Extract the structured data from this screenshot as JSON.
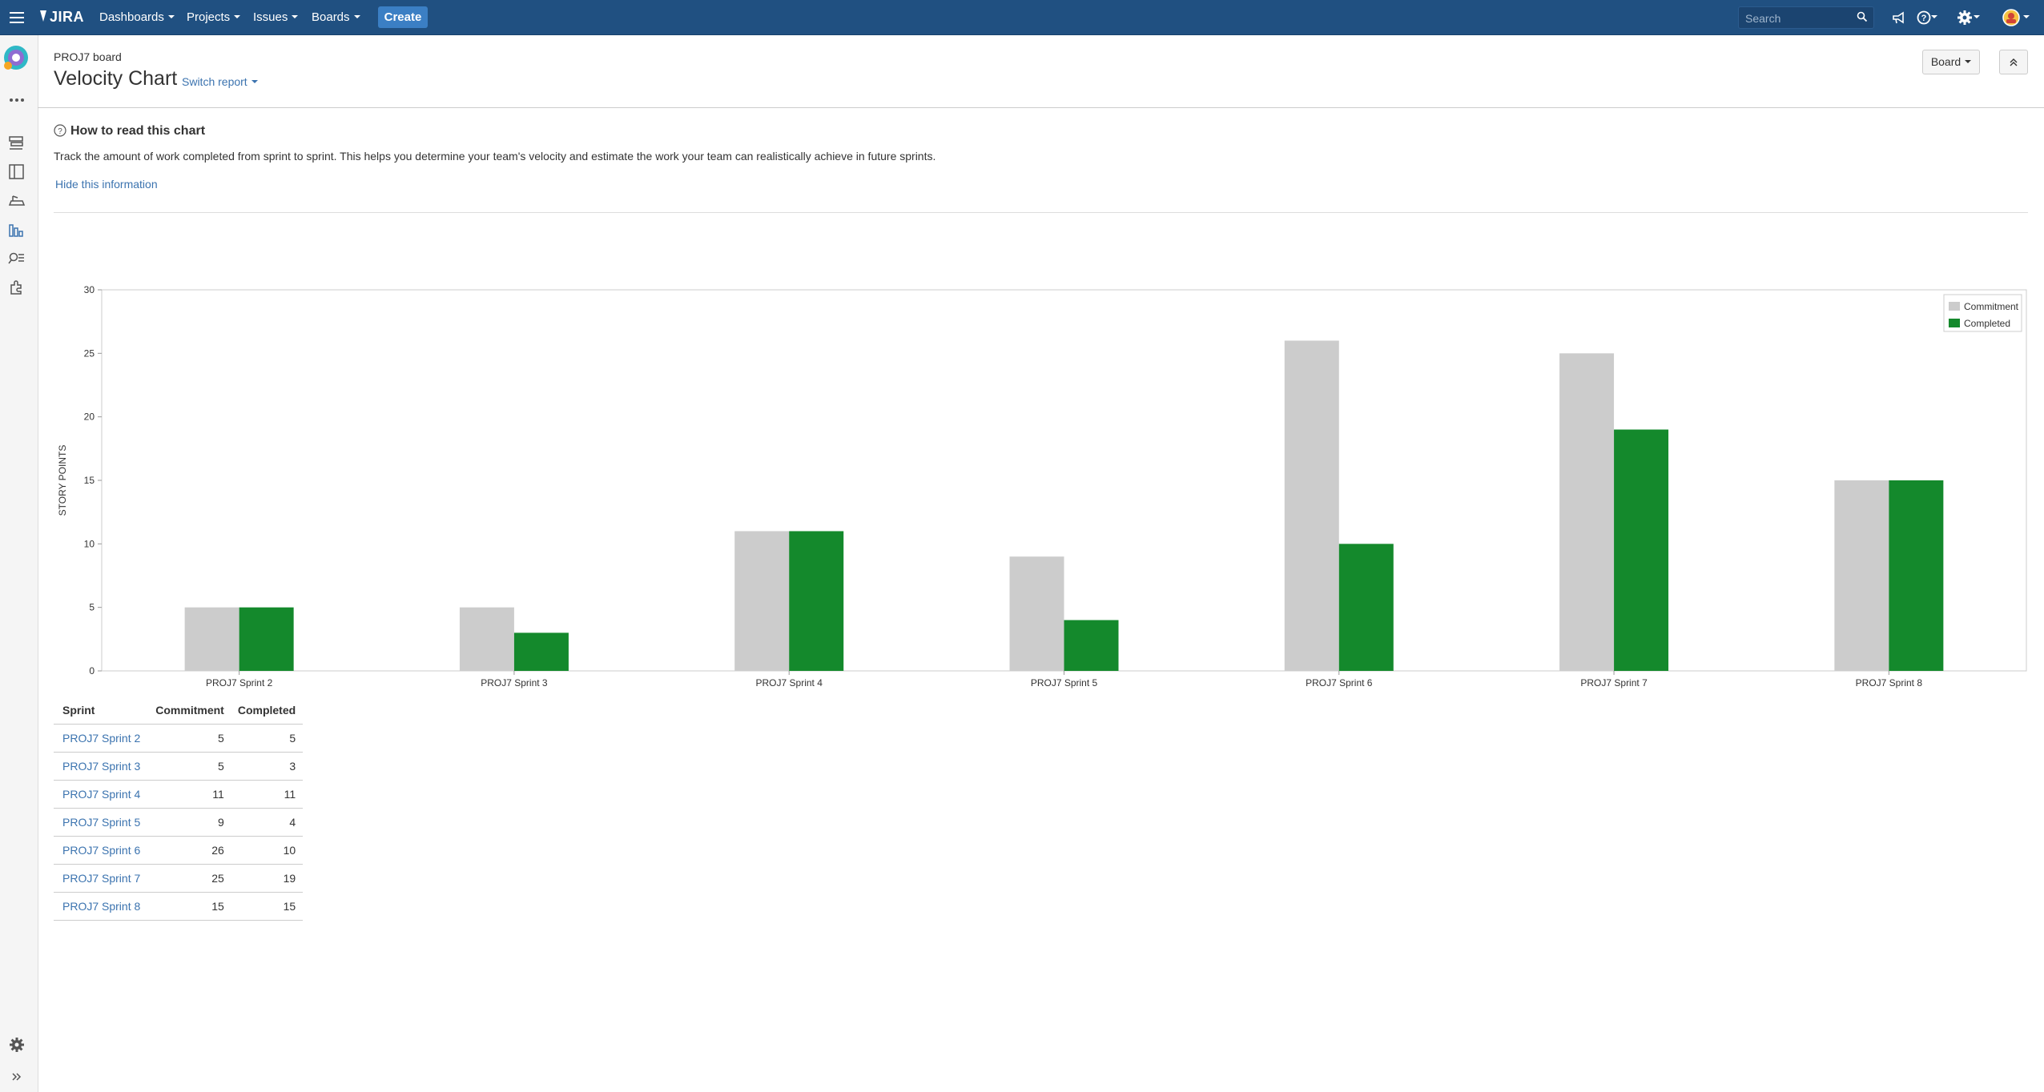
{
  "nav": {
    "logo": "JIRA",
    "dashboards": "Dashboards",
    "projects": "Projects",
    "issues": "Issues",
    "boards": "Boards",
    "create": "Create",
    "search_placeholder": "Search"
  },
  "header": {
    "breadcrumb": "PROJ7 board",
    "title": "Velocity Chart",
    "switch_report": "Switch report",
    "board_button": "Board"
  },
  "info": {
    "title": "How to read this chart",
    "text": "Track the amount of work completed from sprint to sprint. This helps you determine your team's velocity and estimate the work your team can realistically achieve in future sprints.",
    "hide_link": "Hide this information"
  },
  "chart_data": {
    "type": "bar",
    "categories": [
      "PROJ7 Sprint 2",
      "PROJ7 Sprint 3",
      "PROJ7 Sprint 4",
      "PROJ7 Sprint 5",
      "PROJ7 Sprint 6",
      "PROJ7 Sprint 7",
      "PROJ7 Sprint 8"
    ],
    "series": [
      {
        "name": "Commitment",
        "values": [
          5,
          5,
          11,
          9,
          26,
          25,
          15
        ],
        "color": "#cccccc"
      },
      {
        "name": "Completed",
        "values": [
          5,
          3,
          11,
          4,
          10,
          19,
          15
        ],
        "color": "#14892c"
      }
    ],
    "ylabel": "STORY POINTS",
    "ylim": [
      0,
      30
    ],
    "yticks": [
      0,
      5,
      10,
      15,
      20,
      25,
      30
    ],
    "legend": "top-right"
  },
  "table": {
    "headers": [
      "Sprint",
      "Commitment",
      "Completed"
    ],
    "rows": [
      {
        "sprint": "PROJ7 Sprint 2",
        "commitment": "5",
        "completed": "5"
      },
      {
        "sprint": "PROJ7 Sprint 3",
        "commitment": "5",
        "completed": "3"
      },
      {
        "sprint": "PROJ7 Sprint 4",
        "commitment": "11",
        "completed": "11"
      },
      {
        "sprint": "PROJ7 Sprint 5",
        "commitment": "9",
        "completed": "4"
      },
      {
        "sprint": "PROJ7 Sprint 6",
        "commitment": "26",
        "completed": "10"
      },
      {
        "sprint": "PROJ7 Sprint 7",
        "commitment": "25",
        "completed": "19"
      },
      {
        "sprint": "PROJ7 Sprint 8",
        "commitment": "15",
        "completed": "15"
      }
    ]
  },
  "colors": {
    "nav_bg": "#205081",
    "link": "#3b73af",
    "commitment": "#cccccc",
    "completed": "#14892c"
  },
  "icons": {
    "menu": "menu-icon",
    "notifications": "megaphone-icon",
    "help": "help-icon",
    "settings": "gear-icon",
    "profile": "avatar"
  }
}
